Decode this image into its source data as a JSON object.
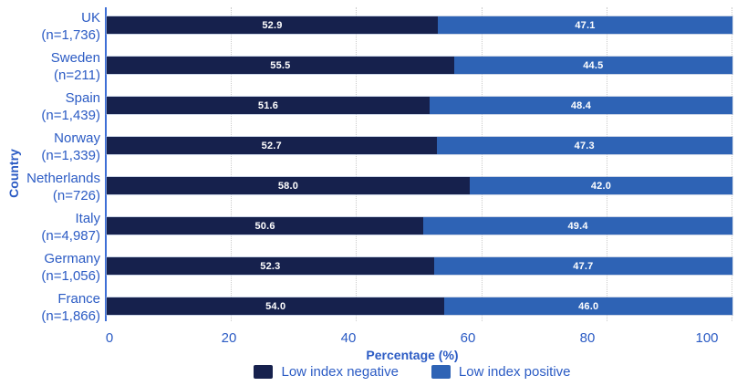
{
  "chart_data": {
    "type": "bar",
    "orientation": "horizontal",
    "stacked": true,
    "title": "",
    "xlabel": "Percentage (%)",
    "ylabel": "Country",
    "xlim": [
      0,
      100
    ],
    "xticks": [
      0,
      20,
      40,
      60,
      80,
      100
    ],
    "grid": "vertical dotted gridlines at each x tick",
    "legend_position": "bottom-center",
    "categories": [
      "UK",
      "Sweden",
      "Spain",
      "Norway",
      "Netherlands",
      "Italy",
      "Germany",
      "France"
    ],
    "category_n_labels": [
      "(n=1,736)",
      "(n=211)",
      "(n=1,439)",
      "(n=1,339)",
      "(n=726)",
      "(n=4,987)",
      "(n=1,056)",
      "(n=1,866)"
    ],
    "series": [
      {
        "name": "Low index negative",
        "color": "#16214D",
        "values": [
          52.9,
          55.5,
          51.6,
          52.7,
          58.0,
          50.6,
          52.3,
          54.0
        ]
      },
      {
        "name": "Low index positive",
        "color": "#2E63B5",
        "values": [
          47.1,
          44.5,
          48.4,
          47.3,
          42.0,
          49.4,
          47.7,
          46.0
        ]
      }
    ],
    "colors": {
      "value_label_text": "#FFFFFF",
      "axis_text": "#2B5BC4",
      "y_axis_line": "#3E6FD6",
      "gridline": "#CBCBCB",
      "background": "#FFFFFF"
    }
  }
}
